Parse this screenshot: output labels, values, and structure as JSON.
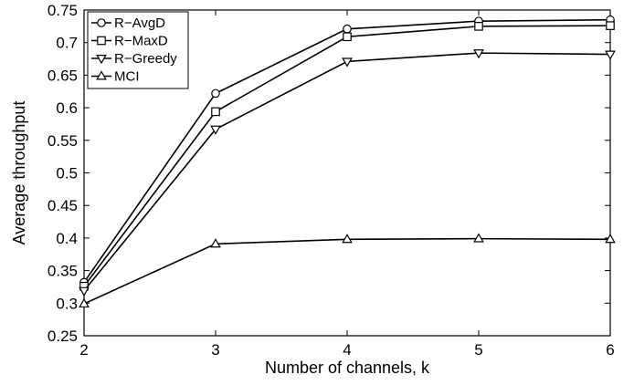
{
  "chart_data": {
    "type": "line",
    "title": "",
    "xlabel": "Number of channels, k",
    "ylabel": "Average throughput",
    "x": [
      2,
      3,
      4,
      5,
      6
    ],
    "xlim": [
      2,
      6
    ],
    "ylim": [
      0.25,
      0.75
    ],
    "xticks": [
      "2",
      "3",
      "4",
      "5",
      "6"
    ],
    "yticks": [
      "0.25",
      "0.3",
      "0.35",
      "0.4",
      "0.45",
      "0.5",
      "0.55",
      "0.6",
      "0.65",
      "0.7",
      "0.75"
    ],
    "grid": false,
    "legend_position": "top-left",
    "series": [
      {
        "name": "R−AvgD",
        "marker": "circle",
        "values": [
          0.332,
          0.622,
          0.721,
          0.733,
          0.735
        ]
      },
      {
        "name": "R−MaxD",
        "marker": "square",
        "values": [
          0.326,
          0.594,
          0.709,
          0.725,
          0.726
        ]
      },
      {
        "name": "R−Greedy",
        "marker": "triangle-down",
        "values": [
          0.319,
          0.567,
          0.671,
          0.684,
          0.682
        ]
      },
      {
        "name": "MCI",
        "marker": "triangle-up",
        "values": [
          0.299,
          0.391,
          0.398,
          0.399,
          0.398
        ]
      }
    ],
    "colors": {
      "line": "#000000",
      "background": "#ffffff"
    }
  }
}
